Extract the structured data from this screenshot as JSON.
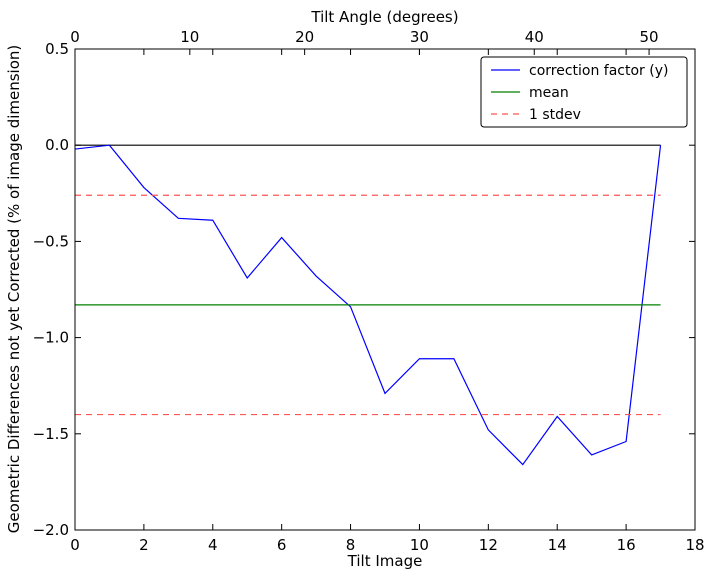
{
  "chart_data": {
    "type": "line",
    "title": "",
    "xlabel": "Tilt Image",
    "x2label": "Tilt Angle (degrees)",
    "ylabel": "Geometric Differences not yet Corrected (% of image dimension)",
    "xlim": [
      0,
      18
    ],
    "x2lim": [
      0,
      54
    ],
    "ylim": [
      -2.0,
      0.5
    ],
    "xticks": [
      0,
      2,
      4,
      6,
      8,
      10,
      12,
      14,
      16,
      18
    ],
    "x2ticks": [
      0,
      10,
      20,
      30,
      40,
      50
    ],
    "yticks": [
      -2.0,
      -1.5,
      -1.0,
      -0.5,
      0.0,
      0.5
    ],
    "ytick_labels": [
      "−2.0",
      "−1.5",
      "−1.0",
      "−0.5",
      "0.0",
      "0.5"
    ],
    "grid": false,
    "legend_position": "top-right",
    "zero_line": {
      "y": 0.0,
      "x_range": [
        0,
        17
      ],
      "color": "#000000"
    },
    "series": [
      {
        "name": "correction factor (y)",
        "color": "#0000ff",
        "style": "solid",
        "x": [
          0,
          1,
          2,
          3,
          4,
          5,
          6,
          7,
          8,
          9,
          10,
          11,
          12,
          13,
          14,
          15,
          16,
          17
        ],
        "y": [
          -0.02,
          0.0,
          -0.22,
          -0.38,
          -0.39,
          -0.69,
          -0.48,
          -0.68,
          -0.84,
          -1.29,
          -1.11,
          -1.11,
          -1.48,
          -1.66,
          -1.41,
          -1.61,
          -1.54,
          0.0
        ]
      },
      {
        "name": "mean",
        "color": "#008000",
        "style": "solid",
        "x": [
          0,
          17
        ],
        "y": [
          -0.83,
          -0.83
        ]
      },
      {
        "name": "1 stdev",
        "color": "#ff5555",
        "style": "dashed",
        "x": [
          0,
          17
        ],
        "y": [
          -0.26,
          -0.26
        ]
      },
      {
        "name": "",
        "color": "#ff5555",
        "style": "dashed",
        "x": [
          0,
          17
        ],
        "y": [
          -1.4,
          -1.4
        ]
      }
    ],
    "legend": [
      "correction factor (y)",
      "mean",
      "1 stdev"
    ]
  }
}
